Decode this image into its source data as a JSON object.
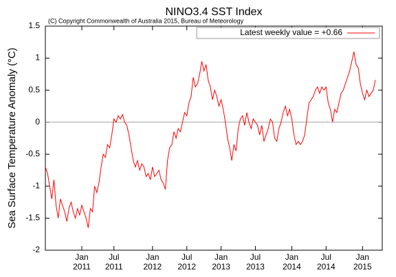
{
  "chart_data": {
    "type": "line",
    "title": "NINO3.4 SST Index",
    "subtitle": "(C) Copyright Commonwealth of Australia 2015, Bureau of Meteorology",
    "y_label": "Sea Surface Temperature Anomaly (°C)",
    "categories": [
      null,
      null,
      null,
      null,
      null,
      null,
      null,
      null,
      null,
      null,
      null,
      null,
      null,
      null,
      null,
      null,
      null,
      "Jan\n2011",
      null,
      null,
      null,
      null,
      null,
      null,
      null,
      null,
      null,
      null,
      null,
      null,
      null,
      null,
      "Jul\n2011",
      null,
      null,
      null,
      null,
      null,
      null,
      null,
      null,
      null,
      null,
      null,
      null,
      null,
      null,
      null,
      null,
      null,
      "Jan\n2012",
      null,
      null,
      null,
      null,
      null,
      null,
      null,
      null,
      null,
      null,
      null,
      null,
      null,
      null,
      null,
      "Jul\n2012",
      null,
      null,
      null,
      null,
      null,
      null,
      null,
      null,
      null,
      null,
      null,
      null,
      null,
      null,
      null,
      "Jan\n2013",
      null,
      null,
      null,
      null,
      null,
      null,
      null,
      null,
      null,
      null,
      null,
      null,
      null,
      null,
      null,
      "Jul\n2013",
      null,
      null,
      null,
      null,
      null,
      null,
      null,
      null,
      null,
      null,
      null,
      null,
      null,
      null,
      null,
      null,
      "Jan\n2014",
      null,
      null,
      null,
      null,
      null,
      null,
      null,
      null,
      null,
      null,
      null,
      null,
      null,
      null,
      null,
      "Jul\n2014",
      null,
      null,
      null,
      null,
      null,
      null,
      null,
      null,
      null,
      null,
      null,
      null,
      null,
      null,
      null,
      null,
      "Jan\n2015",
      null,
      null,
      null,
      null,
      null,
      null
    ],
    "series": [
      {
        "name": "Latest weekly value = +0.66",
        "color": "#ff0000",
        "values": [
          -0.7,
          -0.8,
          -1.0,
          -1.2,
          -0.9,
          -1.3,
          -1.5,
          -1.2,
          -1.3,
          -1.4,
          -1.55,
          -1.35,
          -1.25,
          -1.4,
          -1.5,
          -1.35,
          -1.45,
          -1.3,
          -1.4,
          -1.5,
          -1.65,
          -1.35,
          -1.4,
          -1.0,
          -1.1,
          -0.95,
          -0.7,
          -0.5,
          -0.55,
          -0.35,
          -0.4,
          -0.2,
          0.05,
          0.0,
          0.1,
          0.05,
          0.12,
          0.0,
          -0.05,
          -0.2,
          -0.4,
          -0.6,
          -0.7,
          -0.6,
          -0.75,
          -0.65,
          -0.7,
          -0.85,
          -0.8,
          -0.9,
          -0.7,
          -0.85,
          -0.8,
          -0.75,
          -0.9,
          -0.95,
          -1.05,
          -0.6,
          -0.4,
          -0.35,
          -0.15,
          -0.25,
          -0.1,
          -0.15,
          0.0,
          0.15,
          0.1,
          0.3,
          0.4,
          0.7,
          0.55,
          0.6,
          0.75,
          0.95,
          0.8,
          0.9,
          0.65,
          0.55,
          0.35,
          0.5,
          0.4,
          0.25,
          0.35,
          0.2,
          0.0,
          -0.25,
          -0.4,
          -0.6,
          -0.35,
          -0.45,
          -0.1,
          0.05,
          0.1,
          -0.05,
          0.15,
          0.0,
          -0.1,
          0.05,
          0.0,
          -0.05,
          -0.2,
          -0.05,
          -0.3,
          -0.2,
          -0.1,
          0.05,
          0.0,
          -0.25,
          -0.3,
          -0.1,
          0.0,
          0.15,
          0.25,
          0.1,
          0.2,
          0.05,
          -0.2,
          -0.35,
          -0.3,
          -0.35,
          -0.3,
          -0.2,
          0.05,
          0.3,
          0.35,
          0.4,
          0.5,
          0.55,
          0.45,
          0.55,
          0.5,
          0.55,
          0.3,
          0.2,
          0.0,
          0.2,
          0.15,
          0.3,
          0.45,
          0.5,
          0.6,
          0.7,
          0.8,
          0.95,
          1.1,
          0.9,
          0.85,
          0.6,
          0.45,
          0.35,
          0.5,
          0.4,
          0.45,
          0.5,
          0.66
        ]
      }
    ],
    "ylim": [
      -2,
      1.5
    ],
    "yticks": [
      -2,
      -1.5,
      -1,
      -0.5,
      0,
      0.5,
      1,
      1.5
    ],
    "zero_line": true,
    "legend": "top-right"
  }
}
